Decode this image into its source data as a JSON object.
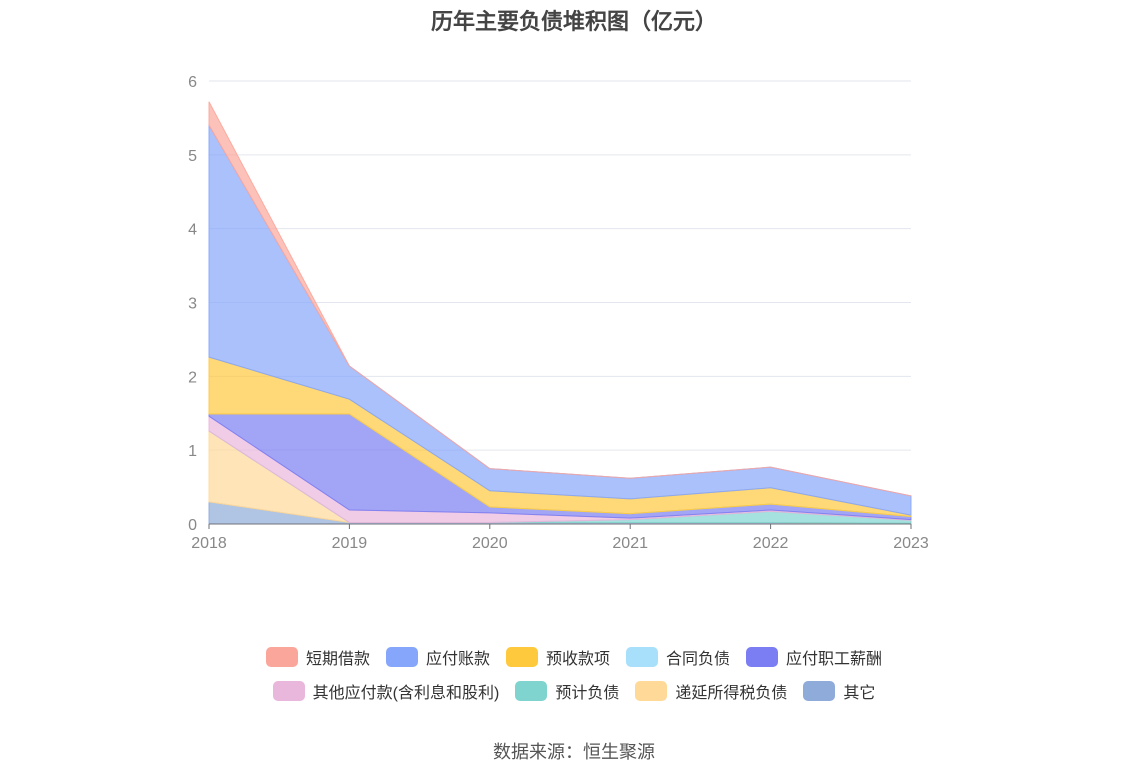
{
  "chart_data": {
    "type": "area",
    "stacked": true,
    "title": "历年主要负债堆积图（亿元）",
    "xlabel": "",
    "ylabel": "",
    "x": [
      "2018",
      "2019",
      "2020",
      "2021",
      "2022",
      "2023"
    ],
    "ylim": [
      0,
      6
    ],
    "yticks": [
      0,
      1,
      2,
      3,
      4,
      5,
      6
    ],
    "grid": true,
    "legend_position": "bottom",
    "series": [
      {
        "name": "其它",
        "color": "#8fabd9",
        "values": [
          0.3,
          0.02,
          0.02,
          0.02,
          0.02,
          0.01
        ]
      },
      {
        "name": "递延所得税负债",
        "color": "#ffd998",
        "values": [
          0.96,
          0.0,
          0.0,
          0.0,
          0.0,
          0.0
        ]
      },
      {
        "name": "预计负债",
        "color": "#7fd4d0",
        "values": [
          0.0,
          0.0,
          0.0,
          0.04,
          0.15,
          0.04
        ]
      },
      {
        "name": "其他应付款(含利息和股利)",
        "color": "#e9b6dc",
        "values": [
          0.2,
          0.17,
          0.13,
          0.02,
          0.02,
          0.01
        ]
      },
      {
        "name": "应付职工薪酬",
        "color": "#7b7ef2",
        "values": [
          0.03,
          1.3,
          0.08,
          0.06,
          0.08,
          0.04
        ]
      },
      {
        "name": "合同负债",
        "color": "#a8dffb",
        "values": [
          0.0,
          0.0,
          0.0,
          0.0,
          0.0,
          0.0
        ]
      },
      {
        "name": "预收款项",
        "color": "#ffc93d",
        "values": [
          0.77,
          0.2,
          0.22,
          0.2,
          0.22,
          0.02
        ]
      },
      {
        "name": "应付账款",
        "color": "#86a6fb",
        "values": [
          3.14,
          0.45,
          0.3,
          0.28,
          0.28,
          0.26
        ]
      },
      {
        "name": "短期借款",
        "color": "#fba69b",
        "values": [
          0.32,
          0.0,
          0.0,
          0.0,
          0.0,
          0.0
        ]
      }
    ],
    "legend_order": [
      "短期借款",
      "应付账款",
      "预收款项",
      "合同负债",
      "应付职工薪酬",
      "其他应付款(含利息和股利)",
      "预计负债",
      "递延所得税负债",
      "其它"
    ]
  },
  "source": "数据来源：恒生聚源"
}
